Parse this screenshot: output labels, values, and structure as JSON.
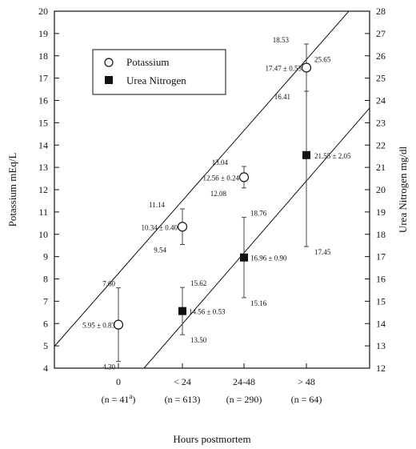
{
  "chart_data": {
    "type": "scatter",
    "xlabel": "Hours postmortem",
    "ylabel_left": "Potassium mEq/L",
    "ylabel_right": "Urea Nitrogen mg/dl",
    "ylim_left": [
      4,
      20
    ],
    "ylim_right": [
      12,
      28
    ],
    "yticks_left": [
      "4",
      "5",
      "6",
      "7",
      "8",
      "9",
      "10",
      "11",
      "12",
      "13",
      "14",
      "15",
      "16",
      "17",
      "18",
      "19",
      "20"
    ],
    "yticks_right": [
      "12",
      "13",
      "14",
      "15",
      "16",
      "17",
      "18",
      "19",
      "20",
      "21",
      "22",
      "23",
      "24",
      "25",
      "26",
      "27",
      "28"
    ],
    "categories": [
      "0",
      "< 24",
      "24-48",
      "> 48"
    ],
    "category_counts": [
      "(n = 41",
      "(n = 613)",
      "(n = 290)",
      "(n = 64)"
    ],
    "category_count_superscript": "a",
    "category_count_suffix": ")",
    "legend": {
      "placement": "top-left"
    },
    "series": [
      {
        "name": "Potassium",
        "axis": "left",
        "marker": "open-circle",
        "points": [
          {
            "cat": 0,
            "y": 5.95,
            "hi": 7.6,
            "lo": 4.3,
            "label": "5.95 ± 0.83",
            "hi_label": "7.60",
            "lo_label": "4.30"
          },
          {
            "cat": 1,
            "y": 10.34,
            "hi": 11.14,
            "lo": 9.54,
            "label": "10.34 ± 0.40",
            "hi_label": "11.14",
            "lo_label": "9.54"
          },
          {
            "cat": 2,
            "y": 12.56,
            "hi": 13.04,
            "lo": 12.08,
            "label": "12.56 ± 0.24",
            "hi_label": "13.04",
            "lo_label": "12.08"
          },
          {
            "cat": 3,
            "y": 17.47,
            "hi": 18.53,
            "lo": 16.41,
            "label": "17.47 ± 0.53",
            "hi_label": "18.53",
            "lo_label": "16.41"
          }
        ],
        "fit": [
          {
            "cat": -1.3,
            "y": 4.0
          },
          {
            "cat": 3.6,
            "y": 20.0
          }
        ]
      },
      {
        "name": "Urea Nitrogen",
        "axis": "right",
        "marker": "filled-square",
        "points": [
          {
            "cat": 1,
            "y": 14.56,
            "hi": 15.62,
            "lo": 13.5,
            "label": "14.56 ± 0.53",
            "hi_label": "15.62",
            "lo_label": "13.50"
          },
          {
            "cat": 2,
            "y": 16.96,
            "hi": 18.76,
            "lo": 15.16,
            "label": "16.96 ± 0.90",
            "hi_label": "18.76",
            "lo_label": "15.16"
          },
          {
            "cat": 3,
            "y": 21.55,
            "hi": 25.65,
            "lo": 17.45,
            "label": "21.55 ± 2.05",
            "hi_label": "25.65",
            "lo_label": "17.45"
          }
        ],
        "fit": [
          {
            "cat": 0.4,
            "y": 12.0
          },
          {
            "cat": 4.3,
            "y": 24.9
          }
        ]
      }
    ]
  }
}
